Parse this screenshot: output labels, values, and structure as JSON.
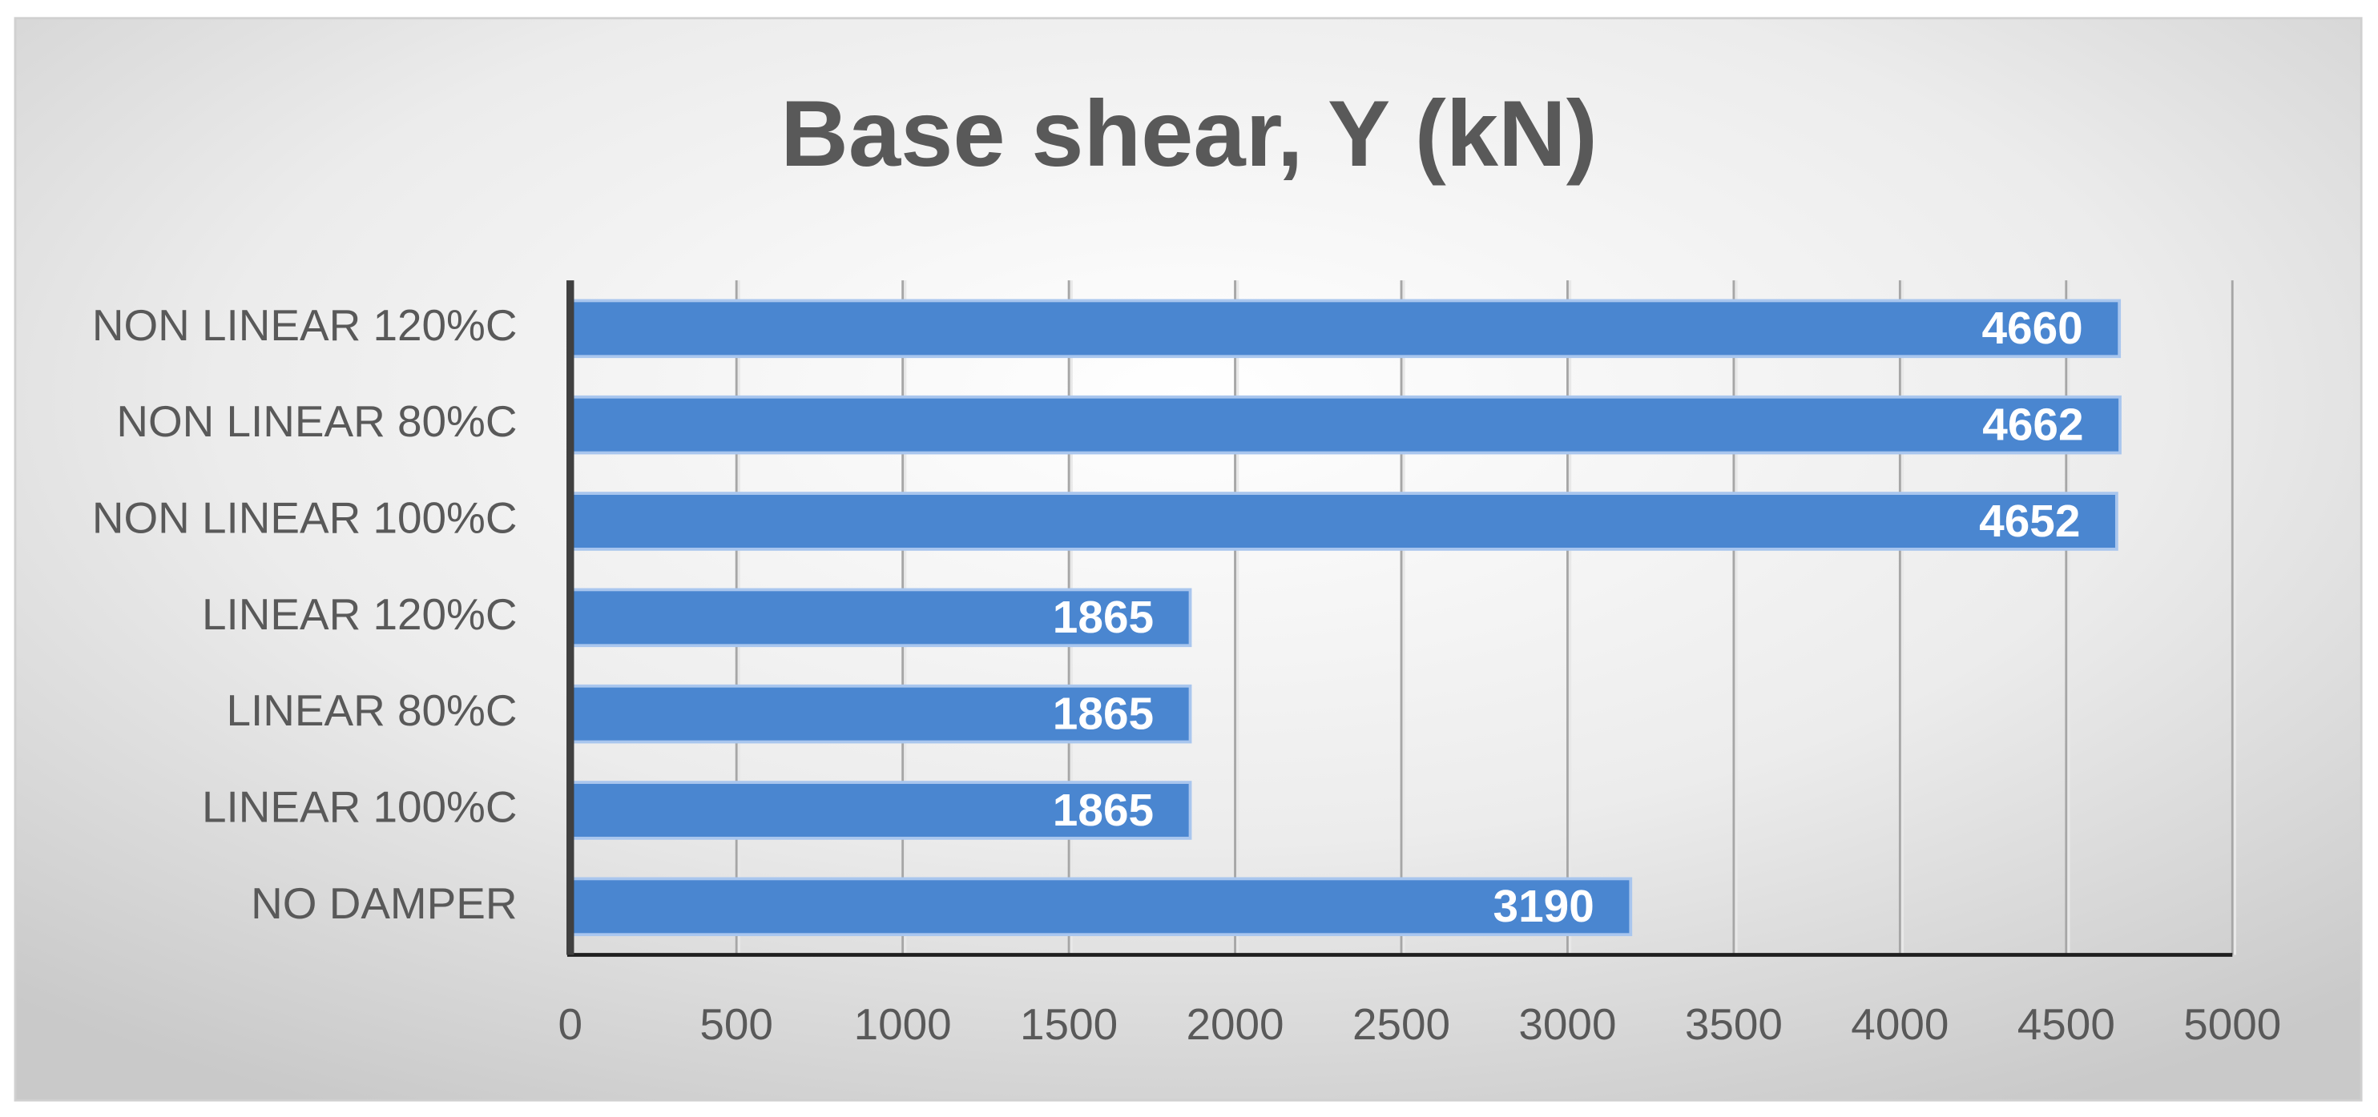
{
  "chart_data": {
    "type": "bar",
    "orientation": "horizontal",
    "title": "Base shear, Y (kN)",
    "categories": [
      "NON LINEAR 120%C",
      "NON LINEAR 80%C",
      "NON LINEAR 100%C",
      "LINEAR 120%C",
      "LINEAR 80%C",
      "LINEAR 100%C",
      "NO DAMPER"
    ],
    "values": [
      4660,
      4662,
      4652,
      1865,
      1865,
      1865,
      3190
    ],
    "color": "#4a86d0",
    "xlim": [
      0,
      5000
    ],
    "xticks": [
      0,
      500,
      1000,
      1500,
      2000,
      2500,
      3000,
      3500,
      4000,
      4500,
      5000
    ],
    "grid": true
  }
}
